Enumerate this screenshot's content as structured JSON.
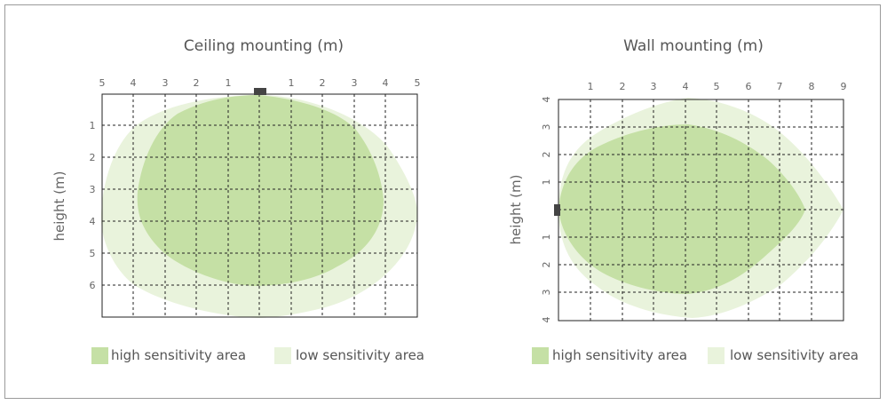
{
  "colors": {
    "high": "#c5e0a5",
    "low": "#e9f3dc",
    "sensor": "#444444"
  },
  "left": {
    "title": "Ceiling mounting (m)",
    "ylabel": "height (m)",
    "x_ticks": [
      "5",
      "4",
      "3",
      "2",
      "1",
      "",
      "1",
      "2",
      "3",
      "4",
      "5"
    ],
    "y_ticks": [
      "1",
      "2",
      "3",
      "4",
      "5",
      "6"
    ],
    "legend": {
      "high": "high sensitivity area",
      "low": "low sensitivity area"
    }
  },
  "right": {
    "title": "Wall mounting (m)",
    "ylabel": "height (m)",
    "x_ticks": [
      "1",
      "2",
      "3",
      "4",
      "5",
      "6",
      "7",
      "8",
      "9"
    ],
    "y_ticks": [
      "4",
      "3",
      "2",
      "1",
      "",
      "1",
      "2",
      "3",
      "4"
    ],
    "legend": {
      "high": "high sensitivity area",
      "low": "low sensitivity area"
    }
  }
}
